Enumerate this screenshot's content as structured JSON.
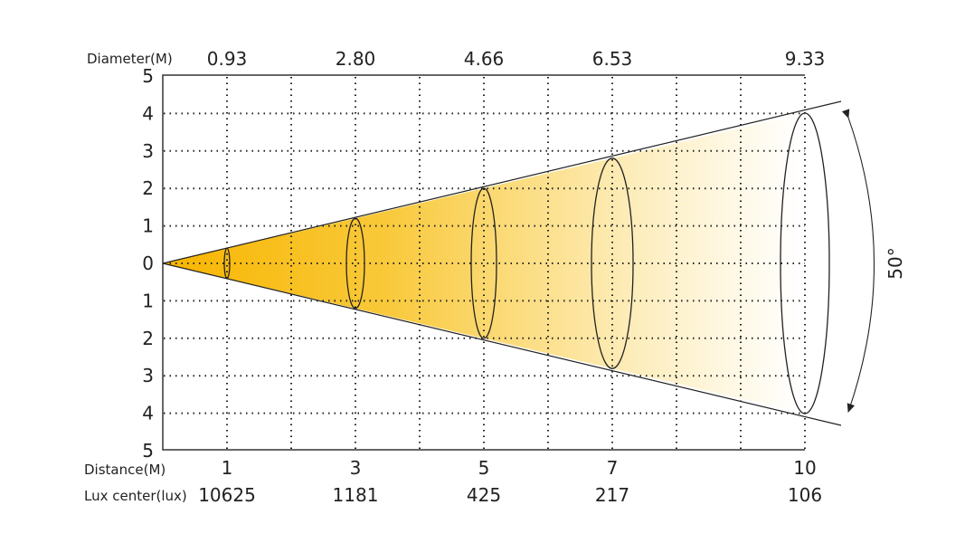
{
  "labels": {
    "diameter": "Diameter(M)",
    "distance": "Distance(M)",
    "lux": "Lux center(lux)",
    "angle": "50°"
  },
  "y_ticks": [
    "5",
    "4",
    "3",
    "2",
    "1",
    "0",
    "1",
    "2",
    "3",
    "4",
    "5"
  ],
  "distances": [
    "1",
    "3",
    "5",
    "7",
    "10"
  ],
  "diameters": [
    "0.93",
    "2.80",
    "4.66",
    "6.53",
    "9.33"
  ],
  "lux": [
    "10625",
    "1181",
    "425",
    "217",
    "106"
  ],
  "colors": {
    "beam_start": "#f7b500",
    "beam_end": "#ffffff",
    "line": "#222222"
  }
}
